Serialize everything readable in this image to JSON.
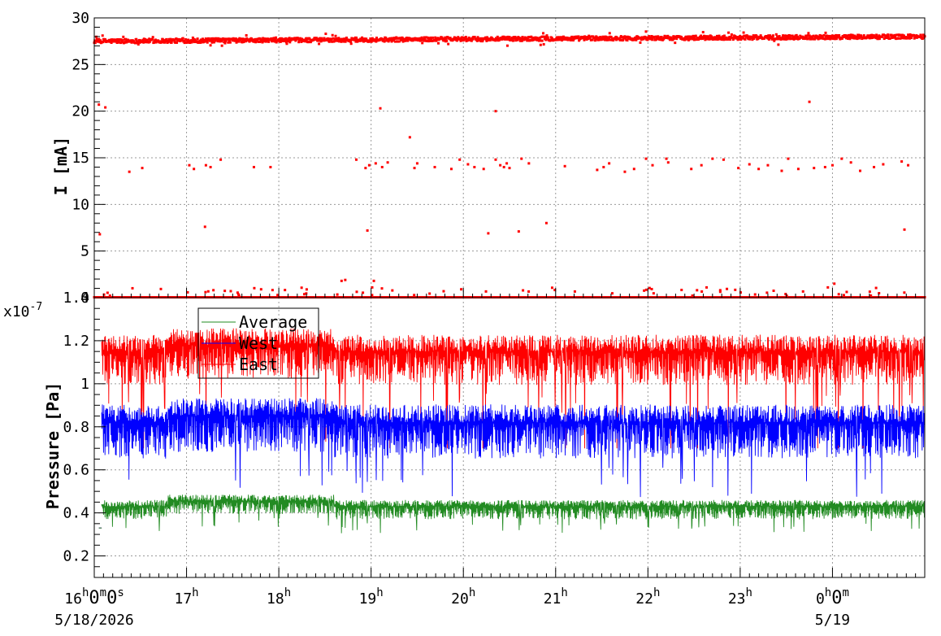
{
  "chart_data": [
    {
      "type": "scatter",
      "ylabel": "I [mA]",
      "ylim": [
        0,
        30
      ],
      "yticks": [
        0,
        5,
        10,
        15,
        20,
        25,
        30
      ],
      "grid": true,
      "color": "#ff0000",
      "series": [
        {
          "baseline_level": 27.5,
          "baseline_end_level": 28.0,
          "outliers": [
            {
              "t": 0.05,
              "y": 20.7
            },
            {
              "t": 0.12,
              "y": 20.4
            },
            {
              "t": 0.06,
              "y": 6.8
            },
            {
              "t": 0.38,
              "y": 13.5
            },
            {
              "t": 0.52,
              "y": 13.9
            },
            {
              "t": 1.03,
              "y": 14.2
            },
            {
              "t": 1.08,
              "y": 13.8
            },
            {
              "t": 1.21,
              "y": 14.2
            },
            {
              "t": 1.26,
              "y": 14.0
            },
            {
              "t": 1.37,
              "y": 14.8
            },
            {
              "t": 1.2,
              "y": 7.6
            },
            {
              "t": 1.73,
              "y": 14.0
            },
            {
              "t": 1.91,
              "y": 14.0
            },
            {
              "t": 2.84,
              "y": 14.8
            },
            {
              "t": 2.94,
              "y": 13.9
            },
            {
              "t": 2.98,
              "y": 14.2
            },
            {
              "t": 3.05,
              "y": 14.4
            },
            {
              "t": 3.12,
              "y": 14.0
            },
            {
              "t": 3.18,
              "y": 14.5
            },
            {
              "t": 3.1,
              "y": 20.3
            },
            {
              "t": 3.42,
              "y": 17.2
            },
            {
              "t": 3.47,
              "y": 13.9
            },
            {
              "t": 3.5,
              "y": 14.4
            },
            {
              "t": 2.96,
              "y": 7.2
            },
            {
              "t": 3.69,
              "y": 14.0
            },
            {
              "t": 3.87,
              "y": 13.8
            },
            {
              "t": 3.96,
              "y": 14.8
            },
            {
              "t": 4.05,
              "y": 14.3
            },
            {
              "t": 4.12,
              "y": 14.0
            },
            {
              "t": 4.22,
              "y": 13.8
            },
            {
              "t": 4.35,
              "y": 14.8
            },
            {
              "t": 4.4,
              "y": 14.2
            },
            {
              "t": 4.44,
              "y": 14.0
            },
            {
              "t": 4.47,
              "y": 14.4
            },
            {
              "t": 4.5,
              "y": 13.9
            },
            {
              "t": 4.63,
              "y": 14.9
            },
            {
              "t": 4.71,
              "y": 14.4
            },
            {
              "t": 4.35,
              "y": 20.0
            },
            {
              "t": 4.27,
              "y": 6.9
            },
            {
              "t": 4.6,
              "y": 7.1
            },
            {
              "t": 4.9,
              "y": 8.0
            },
            {
              "t": 5.1,
              "y": 14.1
            },
            {
              "t": 5.45,
              "y": 13.7
            },
            {
              "t": 5.52,
              "y": 14.0
            },
            {
              "t": 5.58,
              "y": 14.4
            },
            {
              "t": 5.75,
              "y": 13.5
            },
            {
              "t": 5.85,
              "y": 13.8
            },
            {
              "t": 5.98,
              "y": 14.9
            },
            {
              "t": 6.05,
              "y": 14.2
            },
            {
              "t": 6.2,
              "y": 14.9
            },
            {
              "t": 6.22,
              "y": 14.5
            },
            {
              "t": 6.47,
              "y": 13.8
            },
            {
              "t": 6.58,
              "y": 14.2
            },
            {
              "t": 6.7,
              "y": 14.9
            },
            {
              "t": 6.82,
              "y": 14.8
            },
            {
              "t": 6.98,
              "y": 13.9
            },
            {
              "t": 7.1,
              "y": 14.3
            },
            {
              "t": 7.2,
              "y": 13.8
            },
            {
              "t": 7.3,
              "y": 14.2
            },
            {
              "t": 7.45,
              "y": 13.6
            },
            {
              "t": 7.52,
              "y": 14.9
            },
            {
              "t": 7.75,
              "y": 21.0
            },
            {
              "t": 7.63,
              "y": 13.8
            },
            {
              "t": 7.8,
              "y": 13.9
            },
            {
              "t": 7.92,
              "y": 14.0
            },
            {
              "t": 8.0,
              "y": 14.2
            },
            {
              "t": 8.1,
              "y": 14.9
            },
            {
              "t": 8.2,
              "y": 14.5
            },
            {
              "t": 8.3,
              "y": 13.6
            },
            {
              "t": 8.45,
              "y": 14.0
            },
            {
              "t": 8.55,
              "y": 14.3
            },
            {
              "t": 8.75,
              "y": 14.6
            },
            {
              "t": 8.82,
              "y": 14.2
            },
            {
              "t": 8.78,
              "y": 7.3
            },
            {
              "t": 3.03,
              "y": 1.8
            },
            {
              "t": 2.68,
              "y": 1.8
            },
            {
              "t": 2.72,
              "y": 1.9
            },
            {
              "t": 7.95,
              "y": 1.1
            },
            {
              "t": 8.02,
              "y": 1.5
            }
          ]
        }
      ]
    },
    {
      "type": "line",
      "ylabel": "Pressure [Pa]",
      "exponent_label": "x10",
      "exponent_power": "-7",
      "ylim": [
        0.1,
        1.4
      ],
      "yticks": [
        "0.2",
        "0.4",
        "0.6",
        "0.8",
        "1",
        "1.2",
        "1.4"
      ],
      "grid": true,
      "xticks": [
        {
          "t": 0,
          "hour": "16",
          "extra": "0",
          "extra_unit": "m",
          "extra2": "0",
          "extra2_unit": "s"
        },
        {
          "t": 1,
          "hour": "17"
        },
        {
          "t": 2,
          "hour": "18"
        },
        {
          "t": 3,
          "hour": "19"
        },
        {
          "t": 4,
          "hour": "20"
        },
        {
          "t": 5,
          "hour": "21"
        },
        {
          "t": 6,
          "hour": "22"
        },
        {
          "t": 7,
          "hour": "23"
        },
        {
          "t": 8,
          "hour": "0",
          "extra": "0",
          "extra_unit": "m"
        }
      ],
      "date_labels": [
        {
          "t": 0,
          "text": "5/18/2026"
        },
        {
          "t": 8,
          "text": "5/19"
        }
      ],
      "x_range_hours": [
        0,
        9
      ],
      "series": [
        {
          "name": "Average",
          "color": "#228b22",
          "mean": 0.43,
          "spread": 0.05
        },
        {
          "name": "West",
          "color": "#0000ff",
          "mean": 0.82,
          "spread": 0.14
        },
        {
          "name": "East",
          "color": "#ff0000",
          "mean": 1.15,
          "spread": 0.13
        }
      ],
      "legend_position": "top-left"
    }
  ]
}
